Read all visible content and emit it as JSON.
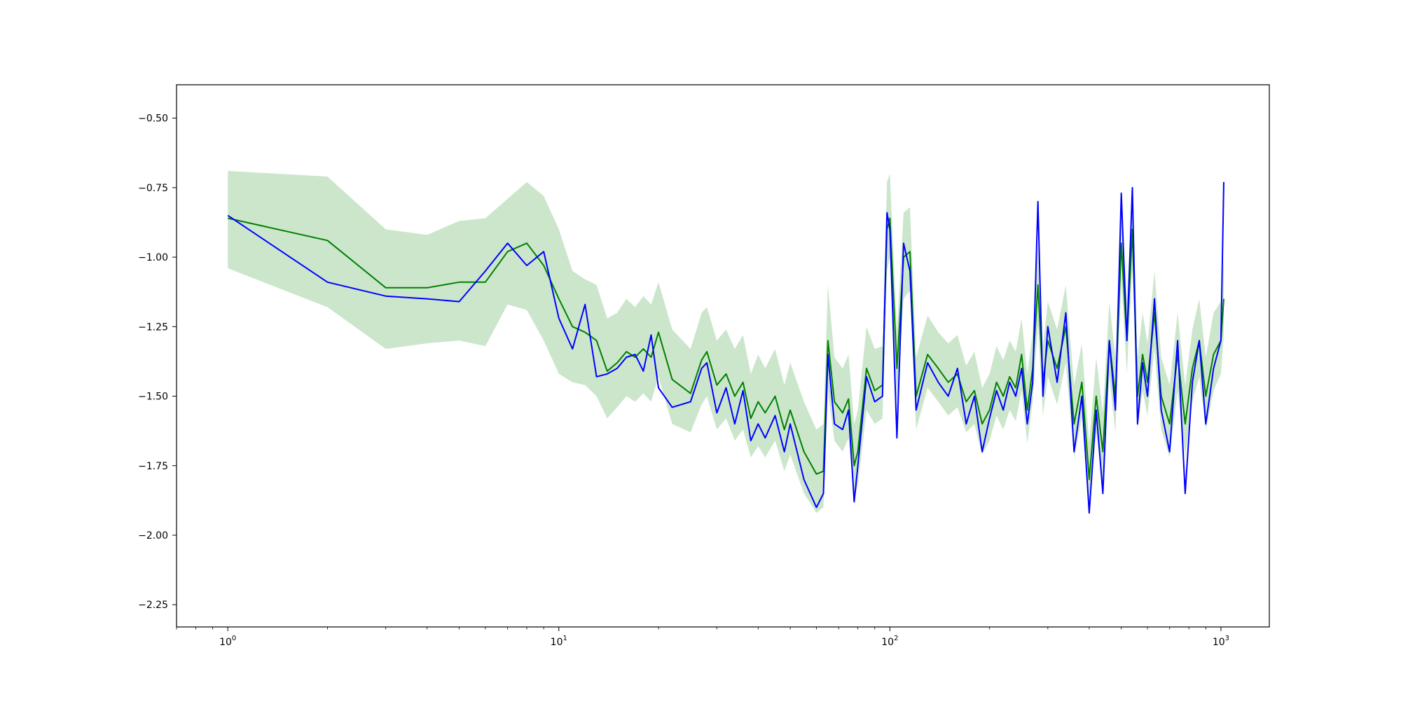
{
  "chart_data": {
    "type": "line",
    "title": "",
    "xlabel": "",
    "ylabel": "",
    "xscale": "log",
    "xlim": [
      0.7,
      1400
    ],
    "ylim": [
      -2.33,
      -0.38
    ],
    "grid": false,
    "legend": "none",
    "x_ticks": [
      {
        "value": 1,
        "base": "10",
        "exp": "0"
      },
      {
        "value": 10,
        "base": "10",
        "exp": "1"
      },
      {
        "value": 100,
        "base": "10",
        "exp": "2"
      },
      {
        "value": 1000,
        "base": "10",
        "exp": "3"
      }
    ],
    "y_ticks": [
      {
        "value": -0.5,
        "label": "−0.50"
      },
      {
        "value": -0.75,
        "label": "−0.75"
      },
      {
        "value": -1.0,
        "label": "−1.00"
      },
      {
        "value": -1.25,
        "label": "−1.25"
      },
      {
        "value": -1.5,
        "label": "−1.50"
      },
      {
        "value": -1.75,
        "label": "−1.75"
      },
      {
        "value": -2.0,
        "label": "−2.00"
      },
      {
        "value": -2.25,
        "label": "−2.25"
      }
    ],
    "series": [
      {
        "color": "#008000",
        "band_color": "#008000",
        "band_opacity": 0.2,
        "x": [
          1,
          2,
          3,
          4,
          5,
          6,
          7,
          8,
          9,
          10,
          11,
          12,
          13,
          14,
          15,
          16,
          17,
          18,
          19,
          20,
          22,
          25,
          27,
          28,
          30,
          32,
          34,
          36,
          38,
          40,
          42,
          45,
          48,
          50,
          55,
          60,
          63,
          65,
          68,
          72,
          75,
          78,
          80,
          85,
          90,
          95,
          98,
          100,
          105,
          110,
          115,
          120,
          130,
          140,
          150,
          160,
          170,
          180,
          190,
          200,
          210,
          220,
          230,
          240,
          250,
          260,
          270,
          280,
          290,
          300,
          320,
          340,
          360,
          380,
          400,
          420,
          440,
          460,
          480,
          500,
          520,
          540,
          560,
          580,
          600,
          630,
          660,
          700,
          740,
          780,
          820,
          860,
          900,
          950,
          1000,
          1020
        ],
        "y": [
          -0.86,
          -0.94,
          -1.11,
          -1.11,
          -1.09,
          -1.09,
          -0.98,
          -0.95,
          -1.03,
          -1.15,
          -1.25,
          -1.27,
          -1.3,
          -1.41,
          -1.38,
          -1.34,
          -1.36,
          -1.33,
          -1.36,
          -1.27,
          -1.44,
          -1.49,
          -1.37,
          -1.34,
          -1.46,
          -1.42,
          -1.5,
          -1.45,
          -1.58,
          -1.52,
          -1.56,
          -1.5,
          -1.62,
          -1.55,
          -1.7,
          -1.78,
          -1.77,
          -1.3,
          -1.52,
          -1.56,
          -1.51,
          -1.75,
          -1.7,
          -1.4,
          -1.48,
          -1.46,
          -0.9,
          -0.86,
          -1.4,
          -1.0,
          -0.98,
          -1.5,
          -1.35,
          -1.4,
          -1.45,
          -1.42,
          -1.52,
          -1.48,
          -1.6,
          -1.55,
          -1.45,
          -1.5,
          -1.43,
          -1.47,
          -1.35,
          -1.55,
          -1.4,
          -1.1,
          -1.45,
          -1.3,
          -1.4,
          -1.25,
          -1.6,
          -1.45,
          -1.8,
          -1.5,
          -1.7,
          -1.3,
          -1.5,
          -0.95,
          -1.3,
          -0.9,
          -1.5,
          -1.35,
          -1.45,
          -1.2,
          -1.5,
          -1.6,
          -1.35,
          -1.6,
          -1.4,
          -1.3,
          -1.5,
          -1.35,
          -1.3,
          -1.15
        ],
        "lower": [
          -1.04,
          -1.18,
          -1.33,
          -1.31,
          -1.3,
          -1.32,
          -1.17,
          -1.19,
          -1.3,
          -1.42,
          -1.45,
          -1.46,
          -1.5,
          -1.58,
          -1.54,
          -1.5,
          -1.52,
          -1.49,
          -1.52,
          -1.43,
          -1.6,
          -1.63,
          -1.53,
          -1.5,
          -1.62,
          -1.58,
          -1.66,
          -1.62,
          -1.72,
          -1.68,
          -1.72,
          -1.66,
          -1.77,
          -1.71,
          -1.85,
          -1.92,
          -1.9,
          -1.48,
          -1.66,
          -1.7,
          -1.65,
          -1.87,
          -1.82,
          -1.55,
          -1.6,
          -1.58,
          -1.05,
          -1.0,
          -1.52,
          -1.15,
          -1.12,
          -1.62,
          -1.47,
          -1.52,
          -1.57,
          -1.54,
          -1.63,
          -1.6,
          -1.71,
          -1.66,
          -1.57,
          -1.62,
          -1.55,
          -1.59,
          -1.48,
          -1.67,
          -1.52,
          -1.24,
          -1.57,
          -1.43,
          -1.53,
          -1.38,
          -1.72,
          -1.58,
          -1.92,
          -1.63,
          -1.82,
          -1.43,
          -1.63,
          -1.08,
          -1.42,
          -1.03,
          -1.62,
          -1.48,
          -1.57,
          -1.33,
          -1.62,
          -1.72,
          -1.48,
          -1.72,
          -1.52,
          -1.43,
          -1.62,
          -1.48,
          -1.42,
          -1.28
        ],
        "upper": [
          -0.69,
          -0.71,
          -0.9,
          -0.92,
          -0.87,
          -0.86,
          -0.79,
          -0.73,
          -0.78,
          -0.9,
          -1.05,
          -1.08,
          -1.1,
          -1.22,
          -1.2,
          -1.15,
          -1.18,
          -1.14,
          -1.17,
          -1.09,
          -1.26,
          -1.33,
          -1.2,
          -1.18,
          -1.3,
          -1.26,
          -1.33,
          -1.28,
          -1.42,
          -1.35,
          -1.4,
          -1.33,
          -1.46,
          -1.38,
          -1.52,
          -1.62,
          -1.6,
          -1.1,
          -1.36,
          -1.4,
          -1.35,
          -1.6,
          -1.55,
          -1.25,
          -1.33,
          -1.32,
          -0.73,
          -0.7,
          -1.27,
          -0.84,
          -0.82,
          -1.36,
          -1.21,
          -1.27,
          -1.31,
          -1.28,
          -1.39,
          -1.34,
          -1.47,
          -1.42,
          -1.32,
          -1.37,
          -1.3,
          -1.34,
          -1.22,
          -1.42,
          -1.27,
          -0.95,
          -1.32,
          -1.16,
          -1.26,
          -1.1,
          -1.46,
          -1.31,
          -1.67,
          -1.36,
          -1.56,
          -1.16,
          -1.36,
          -0.8,
          -1.16,
          -0.75,
          -1.36,
          -1.2,
          -1.31,
          -1.05,
          -1.36,
          -1.46,
          -1.2,
          -1.46,
          -1.26,
          -1.15,
          -1.36,
          -1.2,
          -1.16,
          -1.0
        ]
      },
      {
        "color": "#0000ff",
        "band_color": "#0000ff",
        "band_opacity": 0.2,
        "x": [
          1,
          2,
          3,
          4,
          5,
          6,
          7,
          8,
          9,
          10,
          11,
          12,
          13,
          14,
          15,
          16,
          17,
          18,
          19,
          20,
          22,
          25,
          27,
          28,
          30,
          32,
          34,
          36,
          38,
          40,
          42,
          45,
          48,
          50,
          55,
          60,
          63,
          65,
          68,
          72,
          75,
          78,
          80,
          85,
          90,
          95,
          98,
          100,
          105,
          110,
          115,
          120,
          130,
          140,
          150,
          160,
          170,
          180,
          190,
          200,
          210,
          220,
          230,
          240,
          250,
          260,
          270,
          280,
          290,
          300,
          320,
          340,
          360,
          380,
          400,
          420,
          440,
          460,
          480,
          500,
          520,
          540,
          560,
          580,
          600,
          630,
          660,
          700,
          740,
          780,
          820,
          860,
          900,
          950,
          1000,
          1020
        ],
        "y": [
          -0.85,
          -1.09,
          -1.14,
          -1.15,
          -1.16,
          -1.05,
          -0.95,
          -1.03,
          -0.98,
          -1.22,
          -1.33,
          -1.17,
          -1.43,
          -1.42,
          -1.4,
          -1.36,
          -1.35,
          -1.41,
          -1.28,
          -1.47,
          -1.54,
          -1.52,
          -1.4,
          -1.38,
          -1.56,
          -1.47,
          -1.6,
          -1.48,
          -1.66,
          -1.6,
          -1.65,
          -1.57,
          -1.7,
          -1.6,
          -1.8,
          -1.9,
          -1.85,
          -1.35,
          -1.6,
          -1.62,
          -1.55,
          -1.88,
          -1.75,
          -1.43,
          -1.52,
          -1.5,
          -0.84,
          -0.9,
          -1.65,
          -0.95,
          -1.05,
          -1.55,
          -1.38,
          -1.45,
          -1.5,
          -1.4,
          -1.6,
          -1.5,
          -1.7,
          -1.58,
          -1.48,
          -1.55,
          -1.45,
          -1.5,
          -1.4,
          -1.6,
          -1.45,
          -0.8,
          -1.5,
          -1.25,
          -1.45,
          -1.2,
          -1.7,
          -1.5,
          -1.92,
          -1.55,
          -1.85,
          -1.3,
          -1.55,
          -0.77,
          -1.3,
          -0.75,
          -1.6,
          -1.38,
          -1.5,
          -1.15,
          -1.55,
          -1.7,
          -1.3,
          -1.85,
          -1.45,
          -1.3,
          -1.6,
          -1.4,
          -1.3,
          -0.73
        ]
      }
    ]
  }
}
